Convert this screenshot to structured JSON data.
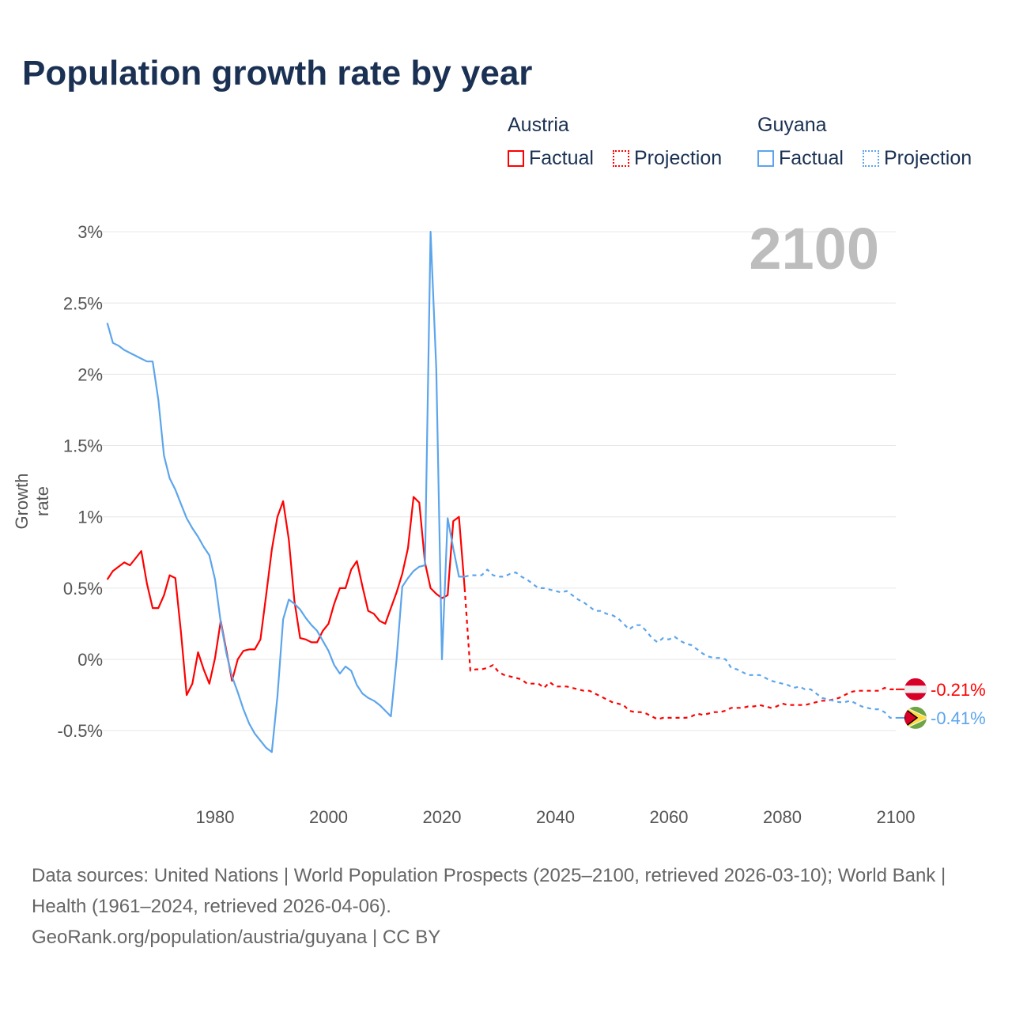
{
  "title": "Population growth rate by year",
  "current_year_label": "2100",
  "legend": {
    "groups": [
      {
        "name": "Austria",
        "factual": "Factual",
        "projection": "Projection",
        "color": "#ff0000"
      },
      {
        "name": "Guyana",
        "factual": "Factual",
        "projection": "Projection",
        "color": "#5ca5ec"
      }
    ]
  },
  "end_labels": {
    "austria": "-0.21%",
    "guyana": "-0.41%"
  },
  "footer": {
    "sources": "Data sources: United Nations | World Population Prospects (2025–2100, retrieved 2026-03-10); World Bank | Health (1961–2024, retrieved 2026-04-06).",
    "credit": "GeoRank.org/population/austria/guyana | CC BY"
  },
  "chart_data": {
    "type": "line",
    "title": "Population growth rate by year",
    "xlabel": "",
    "ylabel": "Growth rate",
    "xlim": [
      1961,
      2100
    ],
    "ylim": [
      -0.8,
      3.2
    ],
    "x_ticks": [
      "1980",
      "2000",
      "2020",
      "2040",
      "2060",
      "2080",
      "2100"
    ],
    "x_tick_values": [
      1980,
      2000,
      2020,
      2040,
      2060,
      2080,
      2100
    ],
    "y_ticks": [
      "3%",
      "2.5%",
      "2%",
      "1.5%",
      "1%",
      "0.5%",
      "0%",
      "-0.5%"
    ],
    "y_tick_values": [
      3,
      2.5,
      2,
      1.5,
      1,
      0.5,
      0,
      -0.5
    ],
    "grid": true,
    "legend_position": "top-right",
    "series": [
      {
        "name": "Austria Factual",
        "country": "Austria",
        "kind": "factual",
        "color": "#ff0000",
        "x_start": 1961,
        "values": [
          0.56,
          0.62,
          0.65,
          0.68,
          0.66,
          0.71,
          0.76,
          0.53,
          0.36,
          0.36,
          0.45,
          0.59,
          0.57,
          0.19,
          -0.25,
          -0.17,
          0.05,
          -0.07,
          -0.17,
          0.01,
          0.27,
          0.06,
          -0.15,
          0.0,
          0.06,
          0.07,
          0.07,
          0.14,
          0.45,
          0.77,
          1.0,
          1.11,
          0.84,
          0.41,
          0.15,
          0.14,
          0.12,
          0.12,
          0.2,
          0.25,
          0.39,
          0.5,
          0.5,
          0.63,
          0.69,
          0.51,
          0.34,
          0.32,
          0.27,
          0.25,
          0.36,
          0.47,
          0.6,
          0.78,
          1.14,
          1.1,
          0.68,
          0.5,
          0.46,
          0.43,
          0.45,
          0.97,
          1.0,
          0.5
        ]
      },
      {
        "name": "Austria Projection",
        "country": "Austria",
        "kind": "projection",
        "color": "#ff0000",
        "x_start": 2025,
        "values": [
          -0.08,
          -0.07,
          -0.07,
          -0.06,
          -0.04,
          -0.09,
          -0.11,
          -0.12,
          -0.13,
          -0.14,
          -0.17,
          -0.17,
          -0.17,
          -0.2,
          -0.16,
          -0.19,
          -0.19,
          -0.19,
          -0.2,
          -0.21,
          -0.22,
          -0.22,
          -0.24,
          -0.26,
          -0.28,
          -0.3,
          -0.31,
          -0.32,
          -0.36,
          -0.37,
          -0.37,
          -0.38,
          -0.4,
          -0.42,
          -0.41,
          -0.41,
          -0.41,
          -0.41,
          -0.41,
          -0.4,
          -0.38,
          -0.39,
          -0.38,
          -0.37,
          -0.37,
          -0.36,
          -0.34,
          -0.34,
          -0.34,
          -0.33,
          -0.33,
          -0.32,
          -0.33,
          -0.34,
          -0.33,
          -0.31,
          -0.32,
          -0.32,
          -0.32,
          -0.32,
          -0.31,
          -0.3,
          -0.29,
          -0.29,
          -0.28,
          -0.27,
          -0.25,
          -0.23,
          -0.22,
          -0.22,
          -0.22,
          -0.22,
          -0.22,
          -0.2,
          -0.21,
          -0.21
        ]
      },
      {
        "name": "Guyana Factual",
        "country": "Guyana",
        "kind": "factual",
        "color": "#5ca5ec",
        "x_start": 1961,
        "values": [
          2.36,
          2.22,
          2.2,
          2.17,
          2.15,
          2.13,
          2.11,
          2.09,
          2.09,
          1.82,
          1.43,
          1.27,
          1.19,
          1.09,
          0.99,
          0.92,
          0.86,
          0.79,
          0.73,
          0.56,
          0.26,
          0.04,
          -0.12,
          -0.23,
          -0.35,
          -0.45,
          -0.52,
          -0.57,
          -0.62,
          -0.65,
          -0.26,
          0.28,
          0.42,
          0.39,
          0.35,
          0.29,
          0.24,
          0.2,
          0.13,
          0.06,
          -0.04,
          -0.1,
          -0.05,
          -0.08,
          -0.18,
          -0.24,
          -0.27,
          -0.29,
          -0.32,
          -0.36,
          -0.4,
          0.0,
          0.51,
          0.57,
          0.62,
          0.65,
          0.66,
          3.0,
          2.04,
          0.0,
          0.99,
          0.78,
          0.58,
          0.58
        ]
      },
      {
        "name": "Guyana Projection",
        "country": "Guyana",
        "kind": "projection",
        "color": "#5ca5ec",
        "x_start": 2025,
        "values": [
          0.59,
          0.59,
          0.59,
          0.63,
          0.59,
          0.58,
          0.58,
          0.6,
          0.61,
          0.58,
          0.56,
          0.53,
          0.5,
          0.5,
          0.49,
          0.48,
          0.47,
          0.48,
          0.45,
          0.42,
          0.4,
          0.37,
          0.34,
          0.34,
          0.32,
          0.31,
          0.29,
          0.25,
          0.21,
          0.24,
          0.24,
          0.2,
          0.15,
          0.12,
          0.15,
          0.14,
          0.16,
          0.13,
          0.11,
          0.1,
          0.07,
          0.04,
          0.02,
          0.01,
          0.01,
          0.0,
          -0.06,
          -0.07,
          -0.09,
          -0.11,
          -0.11,
          -0.11,
          -0.13,
          -0.15,
          -0.16,
          -0.17,
          -0.18,
          -0.2,
          -0.19,
          -0.21,
          -0.21,
          -0.24,
          -0.27,
          -0.28,
          -0.29,
          -0.3,
          -0.3,
          -0.29,
          -0.31,
          -0.33,
          -0.34,
          -0.35,
          -0.35,
          -0.37,
          -0.41,
          -0.41
        ]
      }
    ]
  }
}
